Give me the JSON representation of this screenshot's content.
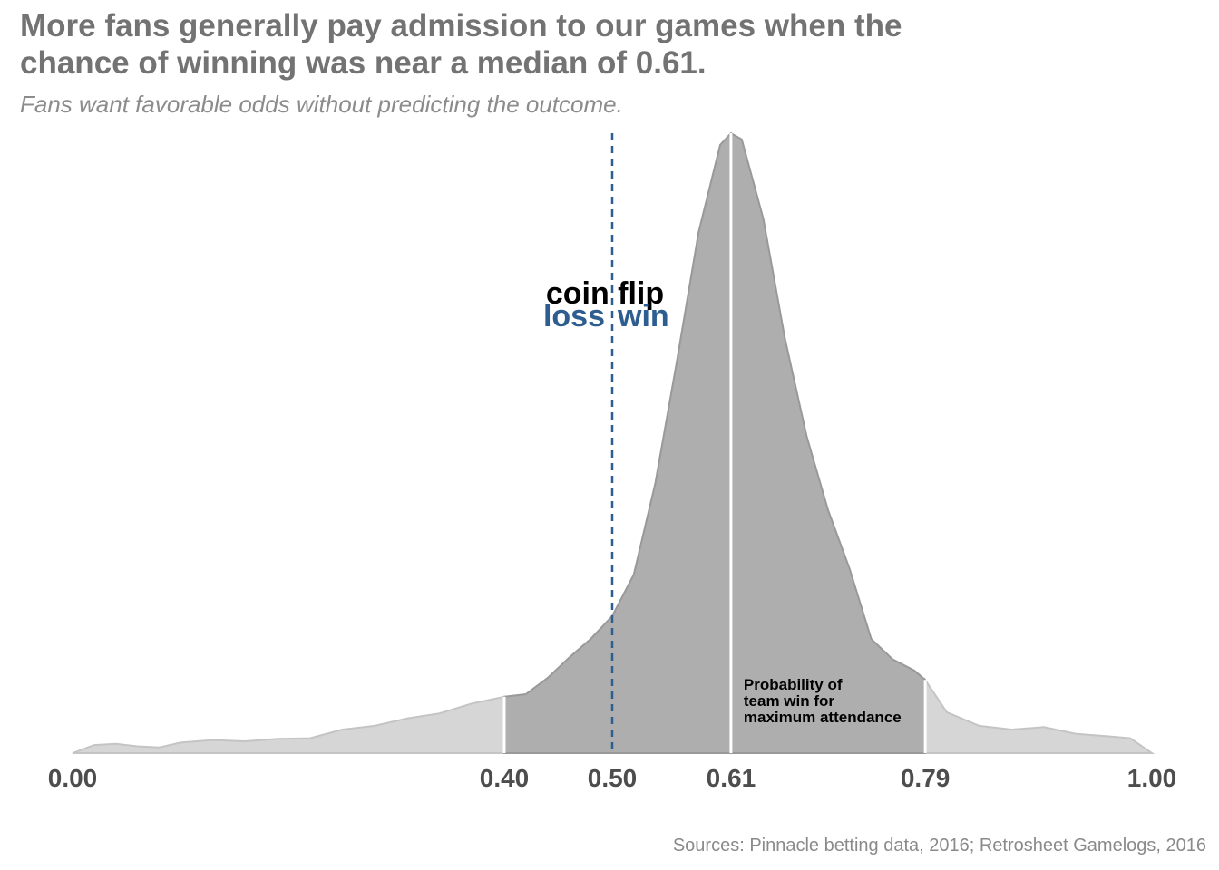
{
  "title": "More fans generally pay admission to our games when the chance of winning was near a median of 0.61.",
  "subtitle": "Fans want favorable odds without predicting the outcome.",
  "source": "Sources: Pinnacle betting data, 2016; Retrosheet Gamelogs, 2016",
  "chart_data": {
    "type": "area",
    "title": "More fans generally pay admission to our games when the chance of winning was near a median of 0.61.",
    "subtitle": "Fans want favorable odds without predicting the outcome.",
    "xlabel": "",
    "ylabel": "",
    "xlim": [
      0,
      1
    ],
    "grid": false,
    "x_tick_labels": [
      "0.00",
      "0.40",
      "0.50",
      "0.61",
      "0.79",
      "1.00"
    ],
    "x_ticks": [
      0.0,
      0.4,
      0.5,
      0.61,
      0.79,
      1.0
    ],
    "density_x": [
      0.0,
      0.02,
      0.04,
      0.06,
      0.08,
      0.1,
      0.13,
      0.16,
      0.19,
      0.22,
      0.25,
      0.28,
      0.31,
      0.34,
      0.37,
      0.4,
      0.42,
      0.44,
      0.46,
      0.48,
      0.5,
      0.52,
      0.54,
      0.56,
      0.58,
      0.6,
      0.61,
      0.62,
      0.64,
      0.66,
      0.68,
      0.7,
      0.72,
      0.74,
      0.76,
      0.78,
      0.79,
      0.81,
      0.84,
      0.87,
      0.9,
      0.93,
      0.96,
      0.98,
      1.0
    ],
    "density_y": [
      0.0,
      0.013,
      0.015,
      0.011,
      0.009,
      0.017,
      0.021,
      0.019,
      0.023,
      0.024,
      0.038,
      0.044,
      0.056,
      0.064,
      0.08,
      0.091,
      0.095,
      0.121,
      0.154,
      0.184,
      0.221,
      0.288,
      0.436,
      0.633,
      0.84,
      0.981,
      1.0,
      0.99,
      0.862,
      0.669,
      0.512,
      0.392,
      0.297,
      0.184,
      0.151,
      0.133,
      0.118,
      0.066,
      0.044,
      0.038,
      0.042,
      0.031,
      0.027,
      0.024,
      0.0
    ],
    "highlight_range": [
      0.4,
      0.79
    ],
    "median": 0.61,
    "reference_line": {
      "x": 0.5,
      "style": "dashed",
      "color": "#2e5d8f"
    },
    "colors": {
      "highlight_fill": "#aeaeae",
      "tail_fill": "#d6d6d6",
      "outline": "#999999",
      "accent": "#2e5d8f"
    },
    "annotations": {
      "coin_flip": "coin flip",
      "loss": "loss",
      "win": "win",
      "note": [
        "Probability of",
        "team win for",
        "maximum attendance"
      ]
    }
  }
}
